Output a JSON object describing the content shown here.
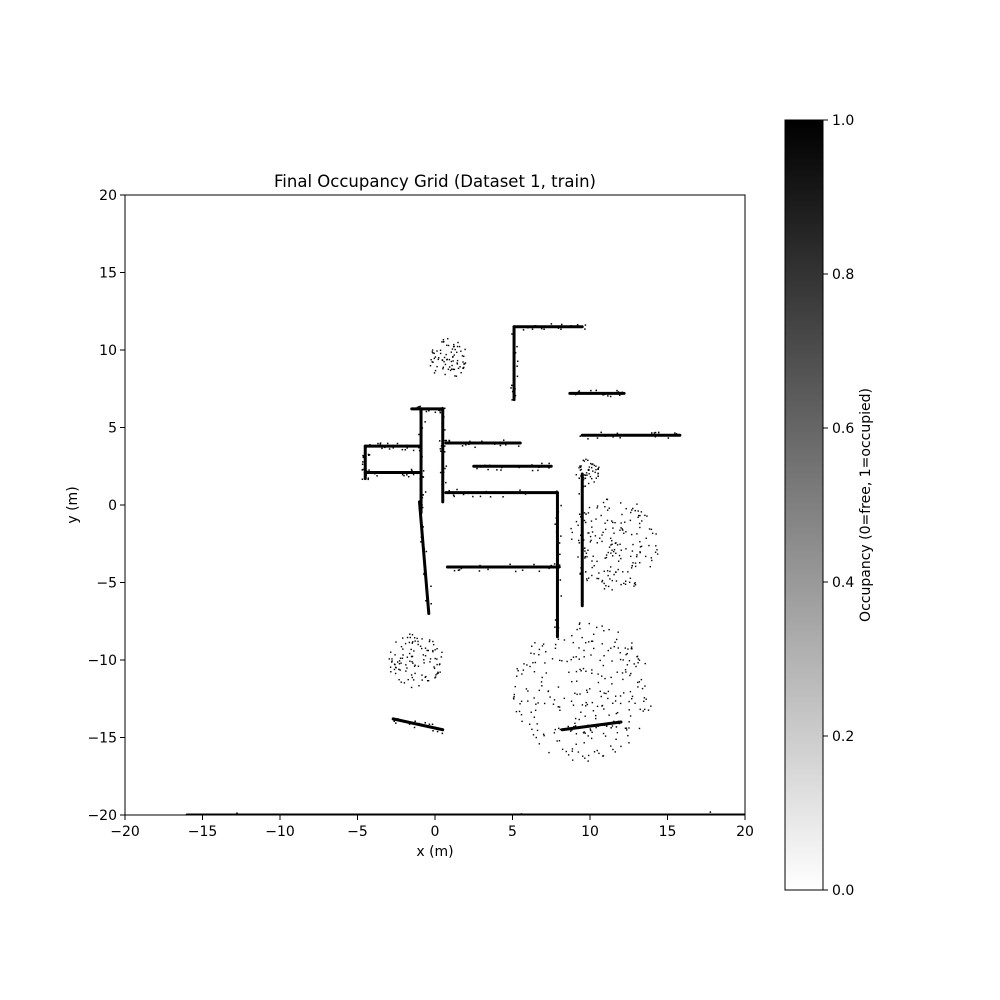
{
  "chart_data": {
    "type": "heatmap",
    "title": "Final Occupancy Grid (Dataset 1, train)",
    "xlabel": "x (m)",
    "ylabel": "y (m)",
    "xlim": [
      -20,
      20
    ],
    "ylim": [
      -20,
      20
    ],
    "x_ticks": [
      -20,
      -15,
      -10,
      -5,
      0,
      5,
      10,
      15,
      20
    ],
    "y_ticks": [
      -20,
      -15,
      -10,
      -5,
      0,
      5,
      10,
      15,
      20
    ],
    "colormap": "gray_r",
    "colors": {
      "free": "#ffffff",
      "occupied": "#000000"
    },
    "colorbar": {
      "label": "Occupancy (0=free, 1=occupied)",
      "range": [
        0.0,
        1.0
      ],
      "ticks": [
        "0.0",
        "0.2",
        "0.4",
        "0.6",
        "0.8",
        "1.0"
      ],
      "tick_values": [
        0.0,
        0.2,
        0.4,
        0.6,
        0.8,
        1.0
      ]
    },
    "grid": false,
    "legend": "none",
    "occupied_wall_segments": [
      {
        "x": [
          -1.5,
          0.5
        ],
        "y": [
          6.2,
          6.2
        ]
      },
      {
        "x": [
          -0.9,
          -0.9
        ],
        "y": [
          6.2,
          -0.5
        ]
      },
      {
        "x": [
          0.5,
          0.5
        ],
        "y": [
          6.2,
          0.2
        ]
      },
      {
        "x": [
          -4.5,
          -0.9
        ],
        "y": [
          3.8,
          3.8
        ]
      },
      {
        "x": [
          -4.5,
          -4.5
        ],
        "y": [
          3.8,
          1.7
        ]
      },
      {
        "x": [
          -4.5,
          -0.9
        ],
        "y": [
          2.1,
          2.1
        ]
      },
      {
        "x": [
          0.7,
          7.8
        ],
        "y": [
          0.8,
          0.8
        ]
      },
      {
        "x": [
          0.7,
          5.5
        ],
        "y": [
          4.0,
          4.0
        ]
      },
      {
        "x": [
          2.5,
          7.5
        ],
        "y": [
          2.5,
          2.5
        ]
      },
      {
        "x": [
          5.1,
          5.1
        ],
        "y": [
          11.5,
          6.8
        ]
      },
      {
        "x": [
          5.1,
          9.5
        ],
        "y": [
          11.5,
          11.5
        ]
      },
      {
        "x": [
          8.7,
          12.2
        ],
        "y": [
          7.2,
          7.2
        ]
      },
      {
        "x": [
          9.5,
          15.8
        ],
        "y": [
          4.5,
          4.5
        ]
      },
      {
        "x": [
          7.9,
          7.9
        ],
        "y": [
          0.8,
          -8.5
        ]
      },
      {
        "x": [
          9.5,
          9.5
        ],
        "y": [
          2.0,
          -6.5
        ]
      },
      {
        "x": [
          -1.0,
          -0.4
        ],
        "y": [
          0.2,
          -7.0
        ]
      },
      {
        "x": [
          0.8,
          8.0
        ],
        "y": [
          -4.0,
          -4.0
        ]
      },
      {
        "x": [
          -2.7,
          0.5
        ],
        "y": [
          -13.8,
          -14.5
        ]
      },
      {
        "x": [
          8.2,
          12.0
        ],
        "y": [
          -14.5,
          -14.0
        ]
      },
      {
        "x": [
          -16.0,
          20.0
        ],
        "y": [
          -20.0,
          -20.0
        ]
      }
    ],
    "occupied_clusters": [
      {
        "x": 0.8,
        "y": 9.5,
        "r": 1.3
      },
      {
        "x": 9.8,
        "y": 2.2,
        "r": 0.8
      },
      {
        "x": 11.5,
        "y": -2.5,
        "r": 3.0
      },
      {
        "x": -1.3,
        "y": -10.0,
        "r": 1.8
      },
      {
        "x": 9.5,
        "y": -12.0,
        "r": 4.5
      }
    ]
  }
}
